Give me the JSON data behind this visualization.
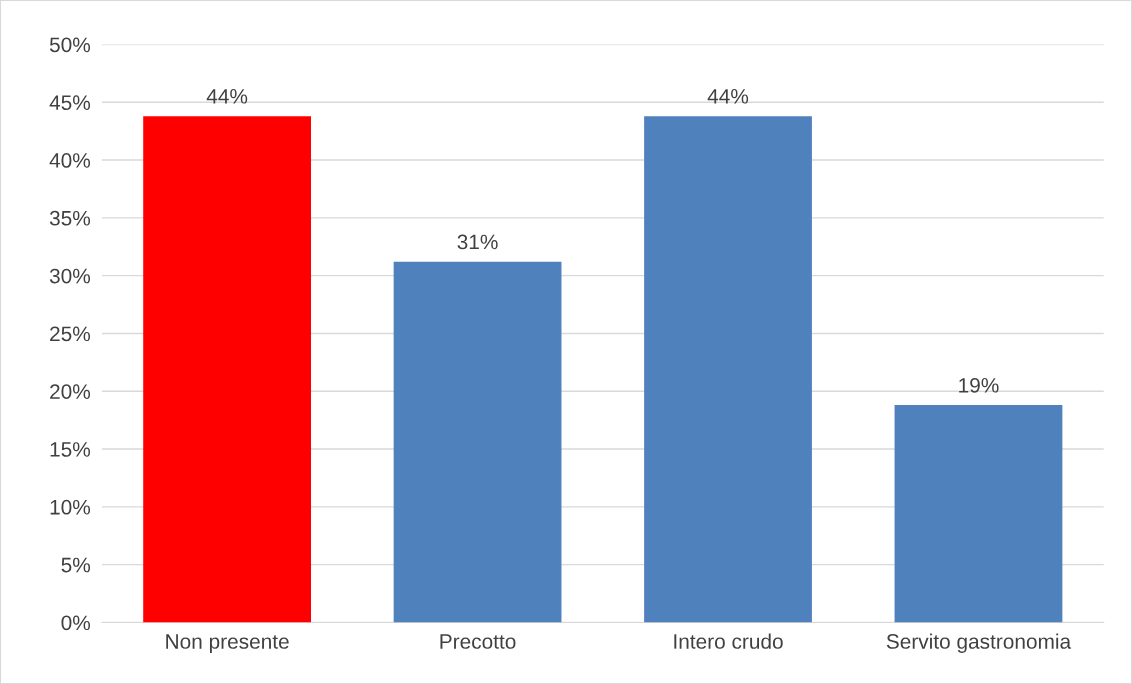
{
  "chart_data": {
    "type": "bar",
    "categories": [
      "Non presente",
      "Precotto",
      "Intero crudo",
      "Servito gastronomia"
    ],
    "values": [
      43.8,
      31.2,
      43.8,
      18.8
    ],
    "colors": [
      "#ff0000",
      "#4f81bd",
      "#4f81bd",
      "#4f81bd"
    ],
    "value_labels": [
      "44%",
      "31%",
      "44%",
      "19%"
    ],
    "ylim": [
      0,
      50
    ],
    "yticks": [
      {
        "value": 0,
        "label": "0%"
      },
      {
        "value": 5,
        "label": "5%"
      },
      {
        "value": 10,
        "label": "10%"
      },
      {
        "value": 15,
        "label": "15%"
      },
      {
        "value": 20,
        "label": "20%"
      },
      {
        "value": 25,
        "label": "25%"
      },
      {
        "value": 30,
        "label": "30%"
      },
      {
        "value": 35,
        "label": "35%"
      },
      {
        "value": 40,
        "label": "40%"
      },
      {
        "value": 45,
        "label": "45%"
      },
      {
        "value": 50,
        "label": "50%"
      }
    ],
    "grid": "y"
  }
}
